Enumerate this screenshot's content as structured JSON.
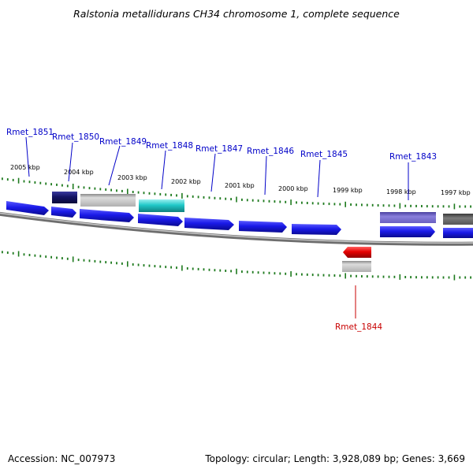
{
  "title": "Ralstonia metallidurans CH34 chromosome 1, complete sequence",
  "accession": "Accession: NC_007973",
  "topology": "Topology: circular; Length: 3,928,089 bp; Genes: 3,669",
  "colors": {
    "plus_strand_cds": "#1414e6",
    "minus_strand_cds": "#e60000",
    "highlight_cyan": "#20c8c8",
    "navy": "#141464",
    "gray": "#b4b4b4",
    "slate": "#7a70cc",
    "dark_gray": "#646464",
    "tick_green": "#1e7a1e",
    "label_blue": "#0000c8",
    "label_red": "#c80000",
    "backbone": "#8c8c8c"
  },
  "scale_labels": [
    "2005 kbp",
    "2004 kbp",
    "2003 kbp",
    "2002 kbp",
    "2001 kbp",
    "2000 kbp",
    "1999 kbp",
    "1998 kbp",
    "1997 kbp"
  ],
  "gene_labels": {
    "rmet_1851": "Rmet_1851",
    "rmet_1850": "Rmet_1850",
    "rmet_1849": "Rmet_1849",
    "rmet_1848": "Rmet_1848",
    "rmet_1847": "Rmet_1847",
    "rmet_1846": "Rmet_1846",
    "rmet_1845": "Rmet_1845",
    "rmet_1843": "Rmet_1843",
    "rmet_1844": "Rmet_1844"
  }
}
